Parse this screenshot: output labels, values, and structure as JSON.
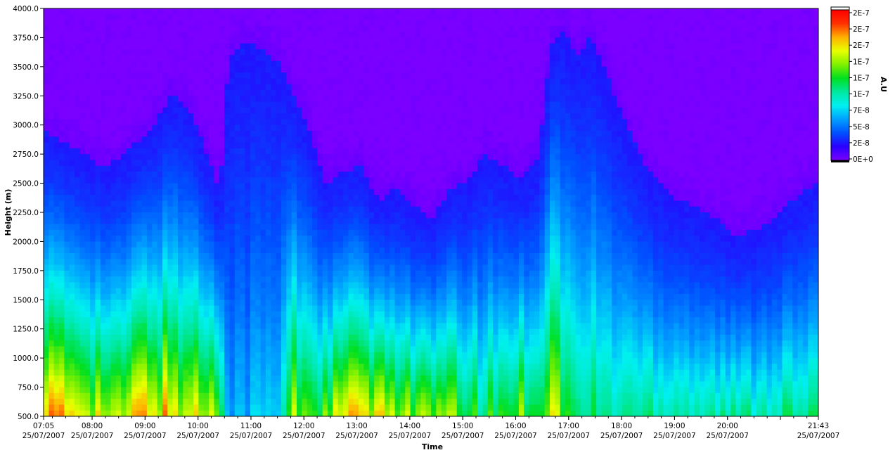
{
  "chart_data": {
    "type": "heatmap",
    "title": "",
    "xlabel": "Time",
    "ylabel": "Height (m)",
    "colorbar_label": "A.U",
    "ylim": [
      500,
      4000
    ],
    "y_ticks": [
      "500.0",
      "750.0",
      "1000.0",
      "1250.0",
      "1500.0",
      "1750.0",
      "2000.0",
      "2250.0",
      "2500.0",
      "2750.0",
      "3000.0",
      "3250.0",
      "3500.0",
      "3750.0",
      "4000.0"
    ],
    "x_range": [
      "07:05",
      "21:43"
    ],
    "x_ticks": [
      {
        "time": "07:05",
        "date": "25/07/2007"
      },
      {
        "time": "08:00",
        "date": "25/07/2007"
      },
      {
        "time": "09:00",
        "date": "25/07/2007"
      },
      {
        "time": "10:00",
        "date": "25/07/2007"
      },
      {
        "time": "11:00",
        "date": "25/07/2007"
      },
      {
        "time": "12:00",
        "date": "25/07/2007"
      },
      {
        "time": "13:00",
        "date": "25/07/2007"
      },
      {
        "time": "14:00",
        "date": "25/07/2007"
      },
      {
        "time": "15:00",
        "date": "25/07/2007"
      },
      {
        "time": "16:00",
        "date": "25/07/2007"
      },
      {
        "time": "17:00",
        "date": "25/07/2007"
      },
      {
        "time": "18:00",
        "date": "25/07/2007"
      },
      {
        "time": "19:00",
        "date": "25/07/2007"
      },
      {
        "time": "20:00",
        "date": "25/07/2007"
      },
      {
        "time": "21:43",
        "date": "25/07/2007"
      }
    ],
    "colorbar_ticks": [
      "2E-7",
      "2E-7",
      "2E-7",
      "1E-7",
      "1E-7",
      "1E-7",
      "7E-8",
      "5E-8",
      "2E-8",
      "0E+0"
    ],
    "colorscale": [
      "#7b00ff",
      "#2a00ff",
      "#0050ff",
      "#00a0ff",
      "#00f0f0",
      "#00e8a0",
      "#00e020",
      "#80f000",
      "#e8ff00",
      "#ffb000",
      "#ff3000",
      "#ff0000"
    ],
    "profiles": [
      {
        "time": "07:05",
        "top": 2950,
        "sfc": 0.84
      },
      {
        "time": "07:30",
        "top": 2850,
        "sfc": 0.75
      },
      {
        "time": "07:50",
        "top": 2750,
        "sfc": 0.8
      },
      {
        "time": "08:10",
        "top": 2650,
        "sfc": 0.7
      },
      {
        "time": "08:30",
        "top": 2700,
        "sfc": 0.62
      },
      {
        "time": "08:50",
        "top": 2850,
        "sfc": 0.78
      },
      {
        "time": "09:10",
        "top": 3000,
        "sfc": 0.8
      },
      {
        "time": "09:30",
        "top": 3250,
        "sfc": 0.74
      },
      {
        "time": "09:50",
        "top": 3150,
        "sfc": 0.72
      },
      {
        "time": "10:10",
        "top": 2750,
        "sfc": 0.7
      },
      {
        "time": "10:25",
        "top": 2400,
        "sfc": 0.64
      },
      {
        "time": "10:35",
        "top": 3600,
        "sfc": 0.3
      },
      {
        "time": "10:55",
        "top": 3700,
        "sfc": 0.3
      },
      {
        "time": "11:15",
        "top": 3650,
        "sfc": 0.32
      },
      {
        "time": "11:35",
        "top": 3500,
        "sfc": 0.32
      },
      {
        "time": "11:45",
        "top": 3300,
        "sfc": 0.66
      },
      {
        "time": "12:05",
        "top": 3000,
        "sfc": 0.62
      },
      {
        "time": "12:25",
        "top": 2500,
        "sfc": 0.58
      },
      {
        "time": "12:45",
        "top": 2600,
        "sfc": 0.74
      },
      {
        "time": "13:05",
        "top": 2650,
        "sfc": 0.76
      },
      {
        "time": "13:25",
        "top": 2350,
        "sfc": 0.68
      },
      {
        "time": "13:45",
        "top": 2450,
        "sfc": 0.72
      },
      {
        "time": "14:05",
        "top": 2300,
        "sfc": 0.66
      },
      {
        "time": "14:25",
        "top": 2200,
        "sfc": 0.6
      },
      {
        "time": "14:45",
        "top": 2450,
        "sfc": 0.62
      },
      {
        "time": "15:05",
        "top": 2500,
        "sfc": 0.55
      },
      {
        "time": "15:25",
        "top": 2750,
        "sfc": 0.5
      },
      {
        "time": "15:45",
        "top": 2650,
        "sfc": 0.56
      },
      {
        "time": "16:05",
        "top": 2550,
        "sfc": 0.62
      },
      {
        "time": "16:25",
        "top": 2700,
        "sfc": 0.58
      },
      {
        "time": "16:40",
        "top": 3700,
        "sfc": 0.72
      },
      {
        "time": "16:55",
        "top": 3800,
        "sfc": 0.6
      },
      {
        "time": "17:10",
        "top": 3600,
        "sfc": 0.45
      },
      {
        "time": "17:25",
        "top": 3750,
        "sfc": 0.5
      },
      {
        "time": "17:45",
        "top": 3400,
        "sfc": 0.45
      },
      {
        "time": "18:05",
        "top": 3000,
        "sfc": 0.47
      },
      {
        "time": "18:30",
        "top": 2600,
        "sfc": 0.47
      },
      {
        "time": "18:55",
        "top": 2400,
        "sfc": 0.48
      },
      {
        "time": "19:20",
        "top": 2300,
        "sfc": 0.47
      },
      {
        "time": "19:45",
        "top": 2200,
        "sfc": 0.45
      },
      {
        "time": "20:10",
        "top": 2050,
        "sfc": 0.44
      },
      {
        "time": "20:35",
        "top": 2100,
        "sfc": 0.46
      },
      {
        "time": "21:00",
        "top": 2250,
        "sfc": 0.48
      },
      {
        "time": "21:20",
        "top": 2400,
        "sfc": 0.45
      },
      {
        "time": "21:43",
        "top": 2500,
        "sfc": 0.44
      }
    ]
  }
}
